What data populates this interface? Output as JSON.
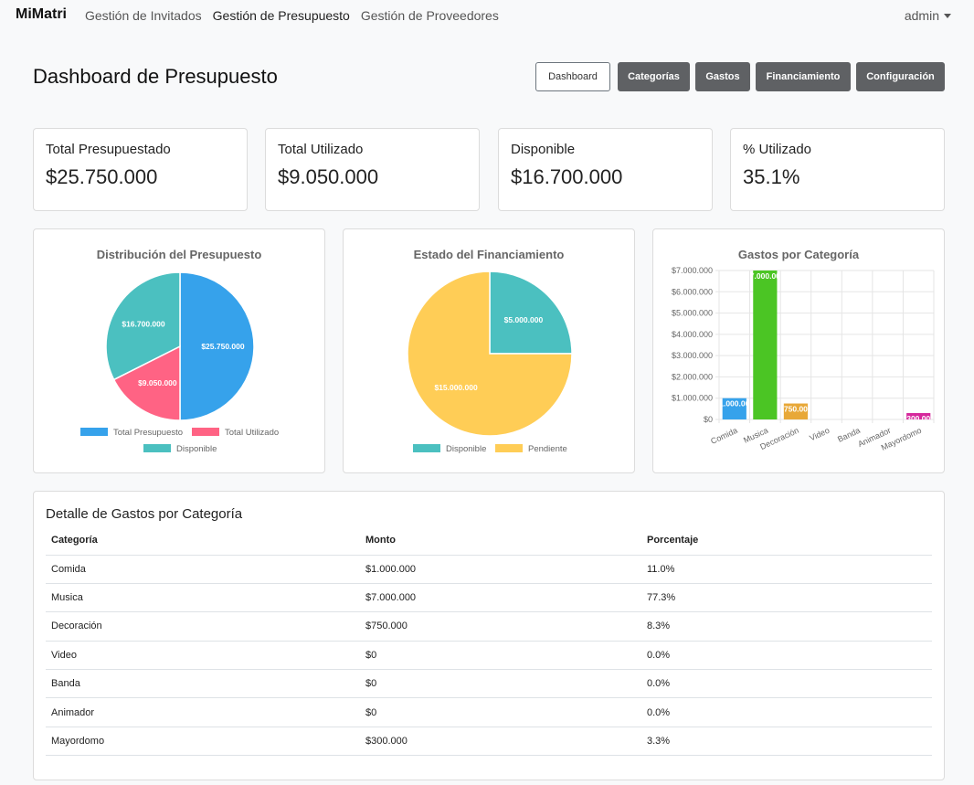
{
  "nav": {
    "brand": "MiMatri",
    "links": [
      "Gestión de Invitados",
      "Gestión de Presupuesto",
      "Gestión de Proveedores"
    ],
    "user": "admin"
  },
  "page": {
    "title": "Dashboard de Presupuesto"
  },
  "toolbar": {
    "buttons": [
      "Dashboard",
      "Categorías",
      "Gastos",
      "Financiamiento",
      "Configuración"
    ]
  },
  "stats": [
    {
      "label": "Total Presupuestado",
      "value": "$25.750.000"
    },
    {
      "label": "Total Utilizado",
      "value": "$9.050.000"
    },
    {
      "label": "Disponible",
      "value": "$16.700.000"
    },
    {
      "label": "% Utilizado",
      "value": "35.1%"
    }
  ],
  "colors": {
    "blue": "#36a2eb",
    "pink": "#ff6384",
    "teal": "#4bc0c0",
    "yellow": "#ffcd56",
    "green": "#4bc524",
    "orange": "#e8a838",
    "magenta": "#d6289c"
  },
  "chart_data": [
    {
      "type": "pie",
      "title": "Distribución del Presupuesto",
      "labels": [
        "Total Presupuesto",
        "Total Utilizado",
        "Disponible"
      ],
      "values": [
        25750000,
        9050000,
        16700000
      ],
      "value_labels": [
        "$25.750.000",
        "$9.050.000",
        "$16.700.000"
      ],
      "legend_position": "bottom"
    },
    {
      "type": "pie",
      "title": "Estado del Financiamiento",
      "labels": [
        "Disponible",
        "Pendiente"
      ],
      "values": [
        5000000,
        15000000
      ],
      "value_labels": [
        "$5.000.000",
        "$15.000.000"
      ],
      "legend_position": "bottom"
    },
    {
      "type": "bar",
      "title": "Gastos por Categoría",
      "categories": [
        "Comida",
        "Musica",
        "Decoración",
        "Video",
        "Banda",
        "Animador",
        "Mayordomo"
      ],
      "values": [
        1000000,
        7000000,
        750000,
        0,
        0,
        0,
        300000
      ],
      "value_labels": [
        "$1.000.000",
        "$7.000.000",
        "$750.000",
        "$0",
        "$0",
        "$0",
        "$300.000"
      ],
      "ylim": [
        0,
        7000000
      ],
      "yticks": [
        "$0",
        "$1.000.000",
        "$2.000.000",
        "$3.000.000",
        "$4.000.000",
        "$5.000.000",
        "$6.000.000",
        "$7.000.000"
      ],
      "grid": true
    }
  ],
  "detail": {
    "title": "Detalle de Gastos por Categoría",
    "columns": [
      "Categoría",
      "Monto",
      "Porcentaje"
    ],
    "rows": [
      [
        "Comida",
        "$1.000.000",
        "11.0%"
      ],
      [
        "Musica",
        "$7.000.000",
        "77.3%"
      ],
      [
        "Decoración",
        "$750.000",
        "8.3%"
      ],
      [
        "Video",
        "$0",
        "0.0%"
      ],
      [
        "Banda",
        "$0",
        "0.0%"
      ],
      [
        "Animador",
        "$0",
        "0.0%"
      ],
      [
        "Mayordomo",
        "$300.000",
        "3.3%"
      ]
    ]
  }
}
